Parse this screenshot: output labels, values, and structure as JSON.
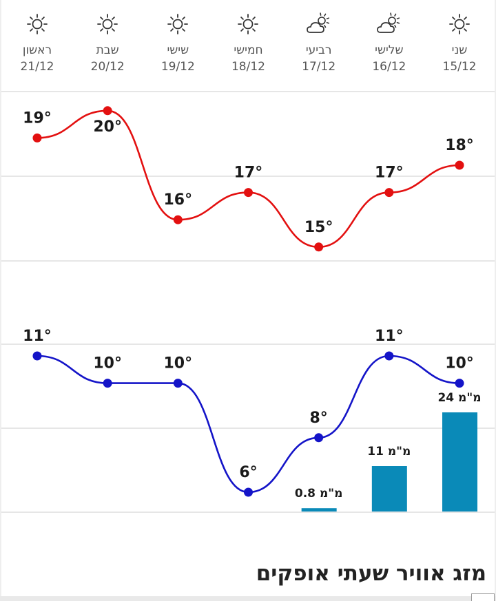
{
  "days": [
    {
      "name": "שני",
      "date": "15/12",
      "icon": "sun-icon"
    },
    {
      "name": "שלישי",
      "date": "16/12",
      "icon": "partly-cloudy-icon"
    },
    {
      "name": "רביעי",
      "date": "17/12",
      "icon": "partly-cloudy-icon"
    },
    {
      "name": "חמישי",
      "date": "18/12",
      "icon": "sun-icon"
    },
    {
      "name": "שישי",
      "date": "19/12",
      "icon": "sun-icon"
    },
    {
      "name": "שבת",
      "date": "20/12",
      "icon": "sun-icon"
    },
    {
      "name": "ראשון",
      "date": "21/12",
      "icon": "sun-icon"
    }
  ],
  "chart_data": {
    "type": "line",
    "direction": "rtl",
    "categories": [
      "15/12",
      "16/12",
      "17/12",
      "18/12",
      "19/12",
      "20/12",
      "21/12"
    ],
    "series": [
      {
        "values": [
          18,
          17,
          15,
          17,
          16,
          20,
          19
        ],
        "labels": [
          "18°",
          "17°",
          "15°",
          "17°",
          "16°",
          "20°",
          "19°"
        ],
        "color": "#e31010"
      },
      {
        "values": [
          10,
          11,
          8,
          6,
          10,
          10,
          11
        ],
        "labels": [
          "10°",
          "11°",
          "8°",
          "6°",
          "10°",
          "10°",
          "11°"
        ],
        "color": "#1414c8"
      }
    ],
    "rain": {
      "type": "bar",
      "values": [
        24,
        11,
        0.8,
        0,
        0,
        0,
        0
      ],
      "labels": [
        "24 מ\"מ",
        "11 מ\"מ",
        "0.8 מ\"מ",
        "",
        "",
        "",
        ""
      ],
      "color": "#0a8ab8"
    },
    "grid": true,
    "legend": "none"
  },
  "section_title": "מזג אוויר שעתי אופקים"
}
